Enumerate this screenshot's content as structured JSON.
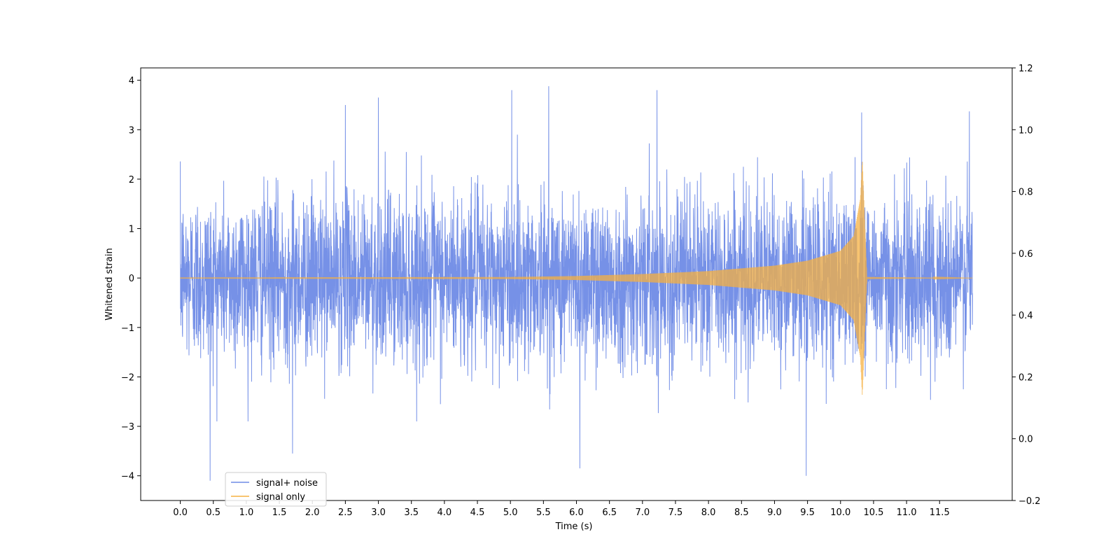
{
  "chart_data": {
    "type": "line",
    "xlabel": "Time (s)",
    "ylabel": "Whitened strain",
    "xlim": [
      -0.6,
      12.6
    ],
    "ylim": [
      -4.5,
      4.25
    ],
    "ylim_right": [
      -0.2,
      1.2
    ],
    "x_ticks": [
      "0.0",
      "0.5",
      "1.0",
      "1.5",
      "2.0",
      "2.5",
      "3.0",
      "3.5",
      "4.0",
      "4.5",
      "5.0",
      "5.5",
      "6.0",
      "6.5",
      "7.0",
      "7.5",
      "8.0",
      "8.5",
      "9.0",
      "9.5",
      "10.0",
      "10.5",
      "11.0",
      "11.5"
    ],
    "y_ticks": [
      "−4",
      "−3",
      "−2",
      "−1",
      "0",
      "1",
      "2",
      "3",
      "4"
    ],
    "y_ticks_right": [
      "−0.2",
      "0.0",
      "0.2",
      "0.4",
      "0.6",
      "0.8",
      "1.0",
      "1.2"
    ],
    "legend": {
      "placement": "lower-left"
    },
    "series": [
      {
        "name": "signal+ noise",
        "color": "#6f8be6",
        "description_points": {
          "x": [
            0.45,
            1.7,
            2.5,
            3.0,
            5.02,
            5.58,
            6.05,
            7.22,
            9.48,
            10.32,
            11.95
          ],
          "y": [
            -4.1,
            -3.55,
            3.5,
            3.65,
            3.8,
            3.88,
            -3.85,
            3.8,
            -4.0,
            3.35,
            3.37
          ]
        },
        "noise_sigma": 0.85,
        "x_range": [
          0.0,
          12.0
        ]
      },
      {
        "name": "signal only",
        "color": "#f5b041",
        "x": [
          0.0,
          5.0,
          6.0,
          7.0,
          8.0,
          9.0,
          9.5,
          10.0,
          10.2,
          10.3,
          10.33,
          10.4,
          12.0
        ],
        "amplitude": [
          0.01,
          0.02,
          0.04,
          0.08,
          0.14,
          0.25,
          0.35,
          0.55,
          0.85,
          1.6,
          2.4,
          0.02,
          0.0
        ]
      }
    ]
  }
}
